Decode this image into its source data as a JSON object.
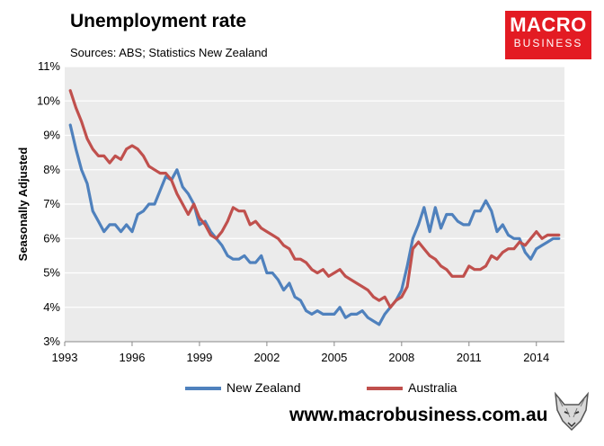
{
  "title": "Unemployment rate",
  "subtitle": "Sources: ABS; Statistics New Zealand",
  "logo": {
    "line1": "MACRO",
    "line2": "BUSINESS",
    "color": "#e31b23"
  },
  "website": "www.macrobusiness.com.au",
  "chart_data": {
    "type": "line",
    "ylabel": "Seasonally Adjusted",
    "xlim": [
      1993,
      2015.25
    ],
    "ylim": [
      3,
      11
    ],
    "grid": true,
    "legend": "bottom",
    "plot_background": "#ebebeb",
    "y_ticks": [
      "3%",
      "4%",
      "5%",
      "6%",
      "7%",
      "8%",
      "9%",
      "10%",
      "11%"
    ],
    "x_ticks": [
      "1993",
      "1996",
      "1999",
      "2002",
      "2005",
      "2008",
      "2011",
      "2014"
    ],
    "series": [
      {
        "name": "New Zealand",
        "color": "#4f81bd",
        "x": [
          1993.25,
          1993.5,
          1993.75,
          1994,
          1994.25,
          1994.5,
          1994.75,
          1995,
          1995.25,
          1995.5,
          1995.75,
          1996,
          1996.25,
          1996.5,
          1996.75,
          1997,
          1997.25,
          1997.5,
          1997.75,
          1998,
          1998.25,
          1998.5,
          1998.75,
          1999,
          1999.25,
          1999.5,
          1999.75,
          2000,
          2000.25,
          2000.5,
          2000.75,
          2001,
          2001.25,
          2001.5,
          2001.75,
          2002,
          2002.25,
          2002.5,
          2002.75,
          2003,
          2003.25,
          2003.5,
          2003.75,
          2004,
          2004.25,
          2004.5,
          2004.75,
          2005,
          2005.25,
          2005.5,
          2005.75,
          2006,
          2006.25,
          2006.5,
          2006.75,
          2007,
          2007.25,
          2007.5,
          2007.75,
          2008,
          2008.25,
          2008.5,
          2008.75,
          2009,
          2009.25,
          2009.5,
          2009.75,
          2010,
          2010.25,
          2010.5,
          2010.75,
          2011,
          2011.25,
          2011.5,
          2011.75,
          2012,
          2012.25,
          2012.5,
          2012.75,
          2013,
          2013.25,
          2013.5,
          2013.75,
          2014,
          2014.25,
          2014.5,
          2014.75,
          2015
        ],
        "values": [
          9.3,
          8.6,
          8.0,
          7.6,
          6.8,
          6.5,
          6.2,
          6.4,
          6.4,
          6.2,
          6.4,
          6.2,
          6.7,
          6.8,
          7.0,
          7.0,
          7.4,
          7.8,
          7.7,
          8.0,
          7.5,
          7.3,
          7.0,
          6.4,
          6.5,
          6.2,
          6.0,
          5.8,
          5.5,
          5.4,
          5.4,
          5.5,
          5.3,
          5.3,
          5.5,
          5.0,
          5.0,
          4.8,
          4.5,
          4.7,
          4.3,
          4.2,
          3.9,
          3.8,
          3.9,
          3.8,
          3.8,
          3.8,
          4.0,
          3.7,
          3.8,
          3.8,
          3.9,
          3.7,
          3.6,
          3.5,
          3.8,
          4.0,
          4.2,
          4.5,
          5.2,
          6.0,
          6.4,
          6.9,
          6.2,
          6.9,
          6.3,
          6.7,
          6.7,
          6.5,
          6.4,
          6.4,
          6.8,
          6.8,
          7.1,
          6.8,
          6.2,
          6.4,
          6.1,
          6.0,
          6.0,
          5.6,
          5.4,
          5.7,
          5.8,
          5.9,
          6.0,
          6.0
        ]
      },
      {
        "name": "Australia",
        "color": "#c0504d",
        "x": [
          1993.25,
          1993.5,
          1993.75,
          1994,
          1994.25,
          1994.5,
          1994.75,
          1995,
          1995.25,
          1995.5,
          1995.75,
          1996,
          1996.25,
          1996.5,
          1996.75,
          1997,
          1997.25,
          1997.5,
          1997.75,
          1998,
          1998.25,
          1998.5,
          1998.75,
          1999,
          1999.25,
          1999.5,
          1999.75,
          2000,
          2000.25,
          2000.5,
          2000.75,
          2001,
          2001.25,
          2001.5,
          2001.75,
          2002,
          2002.25,
          2002.5,
          2002.75,
          2003,
          2003.25,
          2003.5,
          2003.75,
          2004,
          2004.25,
          2004.5,
          2004.75,
          2005,
          2005.25,
          2005.5,
          2005.75,
          2006,
          2006.25,
          2006.5,
          2006.75,
          2007,
          2007.25,
          2007.5,
          2007.75,
          2008,
          2008.25,
          2008.5,
          2008.75,
          2009,
          2009.25,
          2009.5,
          2009.75,
          2010,
          2010.25,
          2010.5,
          2010.75,
          2011,
          2011.25,
          2011.5,
          2011.75,
          2012,
          2012.25,
          2012.5,
          2012.75,
          2013,
          2013.25,
          2013.5,
          2013.75,
          2014,
          2014.25,
          2014.5,
          2014.75,
          2015
        ],
        "values": [
          10.3,
          9.8,
          9.4,
          8.9,
          8.6,
          8.4,
          8.4,
          8.2,
          8.4,
          8.3,
          8.6,
          8.7,
          8.6,
          8.4,
          8.1,
          8.0,
          7.9,
          7.9,
          7.7,
          7.3,
          7.0,
          6.7,
          7.0,
          6.6,
          6.4,
          6.1,
          6.0,
          6.2,
          6.5,
          6.9,
          6.8,
          6.8,
          6.4,
          6.5,
          6.3,
          6.2,
          6.1,
          6.0,
          5.8,
          5.7,
          5.4,
          5.4,
          5.3,
          5.1,
          5.0,
          5.1,
          4.9,
          5.0,
          5.1,
          4.9,
          4.8,
          4.7,
          4.6,
          4.5,
          4.3,
          4.2,
          4.3,
          4.0,
          4.2,
          4.3,
          4.6,
          5.7,
          5.9,
          5.7,
          5.5,
          5.4,
          5.2,
          5.1,
          4.9,
          4.9,
          4.9,
          5.2,
          5.1,
          5.1,
          5.2,
          5.5,
          5.4,
          5.6,
          5.7,
          5.7,
          5.9,
          5.8,
          6.0,
          6.2,
          6.0,
          6.1,
          6.1,
          6.1
        ]
      }
    ]
  }
}
